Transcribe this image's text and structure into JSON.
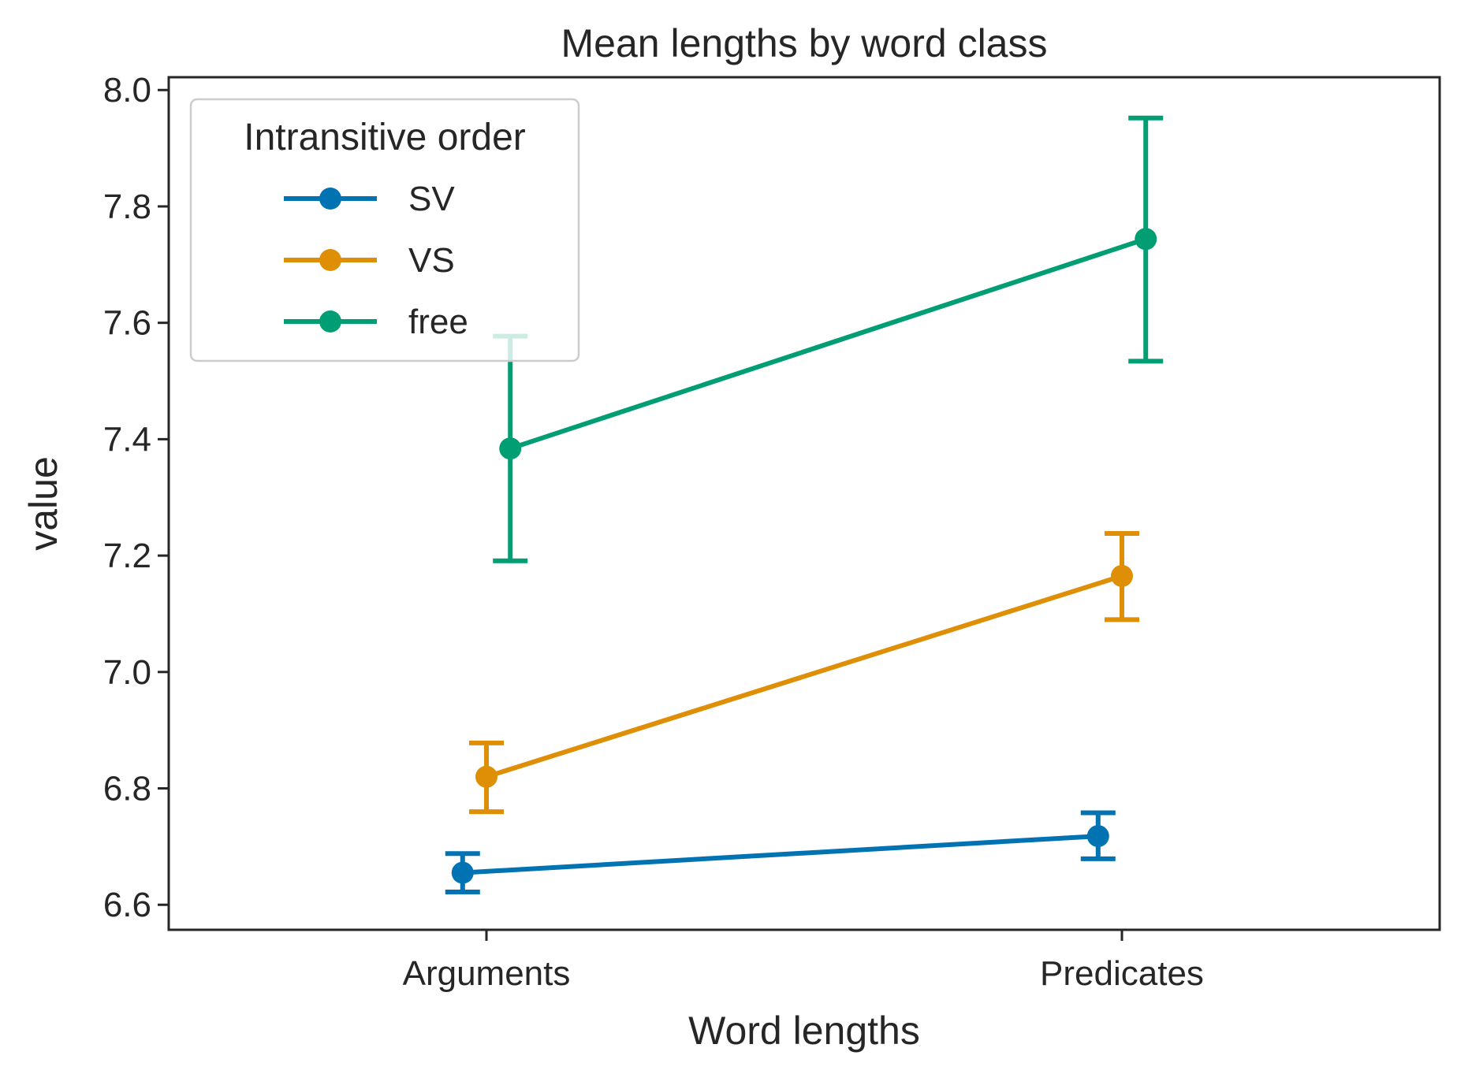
{
  "chart_data": {
    "type": "line",
    "title": "Mean lengths by word class",
    "xlabel": "Word lengths",
    "ylabel": "value",
    "categories": [
      "Arguments",
      "Predicates"
    ],
    "ylim": [
      6.557,
      8.022
    ],
    "yticks": [
      6.6,
      6.8,
      7.0,
      7.2,
      7.4,
      7.6,
      7.8,
      8.0
    ],
    "ytick_labels": [
      "6.6",
      "6.8",
      "7.0",
      "7.2",
      "7.4",
      "7.6",
      "7.8",
      "8.0"
    ],
    "grid": false,
    "legend": {
      "title": "Intransitive order",
      "placement": "top-left"
    },
    "series": [
      {
        "name": "SV",
        "color": "#0173b2",
        "offset": -0.0375,
        "values": [
          6.655,
          6.718
        ],
        "ci_low": [
          6.622,
          6.679
        ],
        "ci_high": [
          6.688,
          6.758
        ]
      },
      {
        "name": "VS",
        "color": "#de8f05",
        "offset": 0,
        "values": [
          6.82,
          7.165
        ],
        "ci_low": [
          6.76,
          7.09
        ],
        "ci_high": [
          6.878,
          7.238
        ]
      },
      {
        "name": "free",
        "color": "#029e73",
        "offset": 0.0375,
        "values": [
          7.384,
          7.744
        ],
        "ci_low": [
          7.191,
          7.534
        ],
        "ci_high": [
          7.577,
          7.952
        ]
      }
    ]
  }
}
